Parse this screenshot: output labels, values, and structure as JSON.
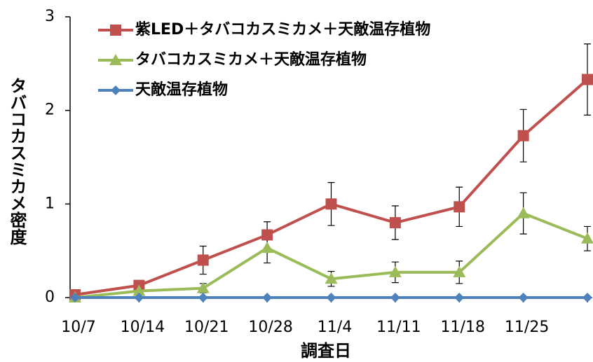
{
  "chart_data": {
    "type": "line",
    "categories": [
      "10/7",
      "10/14",
      "10/21",
      "10/28",
      "11/4",
      "11/11",
      "11/18",
      "11/25",
      null
    ],
    "series": [
      {
        "name": "紫LED＋タバコカスミカメ＋天敵温存植物",
        "color": "#c0504d",
        "marker": "square",
        "values": [
          0.03,
          0.13,
          0.4,
          0.67,
          1.0,
          0.8,
          0.97,
          1.73,
          2.33
        ],
        "errors": [
          0,
          0.03,
          0.15,
          0.14,
          0.23,
          0.18,
          0.21,
          0.28,
          0.38
        ]
      },
      {
        "name": "タバコカスミカメ＋天敵温存植物",
        "color": "#9bbb59",
        "marker": "triangle",
        "values": [
          0,
          0.07,
          0.1,
          0.53,
          0.2,
          0.27,
          0.27,
          0.9,
          0.63
        ],
        "errors": [
          0,
          0,
          0.05,
          0.16,
          0.08,
          0.11,
          0.12,
          0.22,
          0.13
        ]
      },
      {
        "name": "天敵温存植物",
        "color": "#4f81bd",
        "marker": "diamond",
        "values": [
          0,
          0,
          0,
          0,
          0,
          0,
          0,
          0,
          0
        ]
      }
    ],
    "ylim": [
      0,
      3
    ],
    "yticks": [
      0,
      1,
      2,
      3
    ],
    "y_label": "タバコカスミカメ密度",
    "x_label": "調査日",
    "legend": "upper left"
  }
}
